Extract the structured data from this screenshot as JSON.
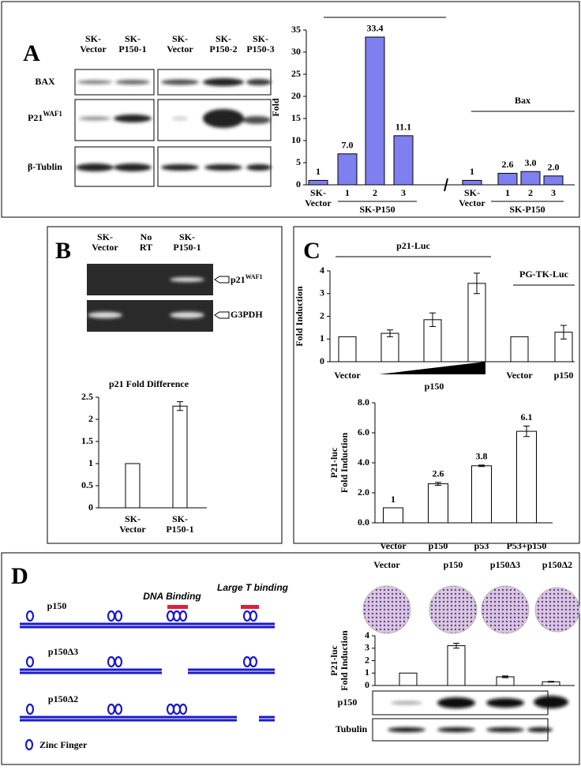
{
  "panel_a": {
    "letter": "A",
    "lanes": [
      "SK-Vector",
      "SK-P150-1",
      "SK-Vector",
      "SK-P150-2",
      "SK-P150-3"
    ],
    "rows": [
      "BAX",
      {
        "name": "P21",
        "sup": "WAF1"
      },
      "β-Tublin"
    ]
  },
  "panel_b": {
    "letter": "B",
    "lanes": [
      "SK-Vector",
      "No RT",
      "SK-P150-1"
    ],
    "bands": [
      {
        "name": "p21",
        "sup": "WAF1"
      },
      "G3PDH"
    ]
  },
  "panel_c": {
    "letter": "C"
  },
  "panel_d": {
    "letter": "D",
    "constructs": [
      "p150",
      "p150Δ3",
      "p150Δ2"
    ],
    "domains": [
      "DNA Binding",
      "Large T binding"
    ],
    "legend": "Zinc Finger",
    "plates": [
      "Vector",
      "p150",
      "p150Δ3",
      "p150Δ2"
    ],
    "blots": [
      "p150",
      "Tubulin"
    ]
  },
  "chart_data": [
    {
      "type": "bar",
      "ylabel": [
        "Fold"
      ],
      "categories": [
        "SK-Vector",
        "1",
        "2",
        "3",
        "SK-Vector",
        "1",
        "2",
        "3"
      ],
      "values": [
        1,
        7.0,
        33.4,
        11.1,
        1,
        2.6,
        3.0,
        2.0
      ],
      "value_labels": [
        "1",
        "7.0",
        "33.4",
        "11.1",
        "1",
        "2.6",
        "3.0",
        "2.0"
      ],
      "group_labels": [
        "SK-P150",
        "SK-P150"
      ],
      "series_label": "Bax",
      "color": "#7f7fef",
      "ylim": [
        0,
        35
      ],
      "yticks": [
        0,
        5,
        10,
        15,
        20,
        25,
        30,
        35
      ]
    },
    {
      "type": "bar",
      "title": "p21 Fold Difference",
      "categories": [
        "SK-Vector",
        "SK-P150-1"
      ],
      "values": [
        1,
        2.3
      ],
      "errors": [
        null,
        0.1
      ],
      "color": "#ffffff",
      "ylim": [
        0,
        2.5
      ],
      "yticks": [
        0,
        0.5,
        1,
        1.5,
        2,
        2.5
      ]
    },
    {
      "type": "bar",
      "ylabel": [
        "Fold Induction"
      ],
      "categories": [
        "Vector",
        null,
        null,
        null,
        "Vector",
        "p150"
      ],
      "values": [
        1.1,
        1.25,
        1.85,
        3.45,
        1.1,
        1.3
      ],
      "errors": [
        null,
        0.15,
        0.3,
        0.45,
        null,
        0.3
      ],
      "annotations": [
        "p21-Luc",
        "PG-TK-Luc"
      ],
      "ramp_label": "p150",
      "color": "#ffffff",
      "ylim": [
        0,
        4
      ],
      "yticks": [
        0,
        1,
        2,
        3,
        4
      ]
    },
    {
      "type": "bar",
      "ylabel": [
        "P21-luc",
        "Fold Induction"
      ],
      "categories": [
        "Vector",
        "p150",
        "p53",
        "P53+p150"
      ],
      "values": [
        1,
        2.6,
        3.8,
        6.1
      ],
      "value_labels": [
        "1",
        "2.6",
        "3.8",
        "6.1"
      ],
      "errors": [
        null,
        0.1,
        0.05,
        0.35
      ],
      "color": "#ffffff",
      "ylim": [
        0,
        8
      ],
      "yticks": [
        {
          "value": 0,
          "label": "0.0"
        },
        {
          "value": 2,
          "label": "2.0"
        },
        {
          "value": 4,
          "label": "4.0"
        },
        {
          "value": 6,
          "label": "6.0"
        },
        {
          "value": 8,
          "label": "8.0"
        }
      ]
    },
    {
      "type": "bar",
      "ylabel": [
        "P21-luc",
        "Fold Induction"
      ],
      "values": [
        1,
        3.2,
        0.7,
        0.3
      ],
      "errors": [
        null,
        0.2,
        0.07,
        0.03
      ],
      "color": "#ffffff",
      "ylim": [
        0,
        4
      ],
      "yticks": [
        0,
        1,
        2,
        3,
        4
      ]
    }
  ]
}
